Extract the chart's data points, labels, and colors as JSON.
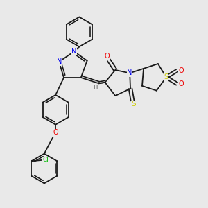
{
  "background_color": "#e9e9e9",
  "figsize": [
    3.0,
    3.0
  ],
  "dpi": 100,
  "atom_colors": {
    "C": "#1a1a1a",
    "N": "#0000ee",
    "O": "#ee0000",
    "S": "#cccc00",
    "Cl": "#00bb00",
    "H": "#555555"
  },
  "bond_color": "#1a1a1a",
  "bond_lw": 1.3
}
